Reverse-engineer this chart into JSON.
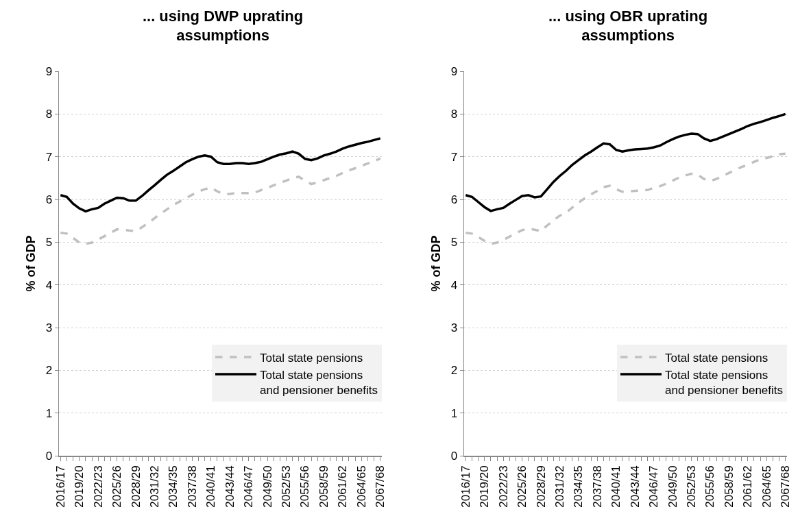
{
  "chart_data": [
    {
      "type": "line",
      "title": "... using DWP uprating assumptions",
      "ylabel": "% of GDP",
      "categories": [
        "2016/17",
        null,
        null,
        "2019/20",
        null,
        null,
        "2022/23",
        null,
        null,
        "2025/26",
        null,
        null,
        "2028/29",
        null,
        null,
        "2031/32",
        null,
        null,
        "2034/35",
        null,
        null,
        "2037/38",
        null,
        null,
        "2040/41",
        null,
        null,
        "2043/44",
        null,
        null,
        "2046/47",
        null,
        null,
        "2049/50",
        null,
        null,
        "2052/53",
        null,
        null,
        "2055/56",
        null,
        null,
        "2058/59",
        null,
        null,
        "2061/62",
        null,
        null,
        "2064/65",
        null,
        null,
        "2067/68"
      ],
      "series": [
        {
          "name": "Total state pensions",
          "color": "#c0c0c0",
          "line_style": "dashed",
          "values": [
            5.22,
            5.2,
            5.1,
            4.99,
            4.96,
            4.99,
            5.06,
            5.14,
            5.22,
            5.3,
            5.29,
            5.27,
            5.26,
            5.35,
            5.45,
            5.56,
            5.67,
            5.77,
            5.87,
            5.95,
            6.03,
            6.11,
            6.18,
            6.24,
            6.28,
            6.19,
            6.12,
            6.13,
            6.15,
            6.15,
            6.15,
            6.16,
            6.22,
            6.27,
            6.33,
            6.39,
            6.44,
            6.5,
            6.53,
            6.44,
            6.36,
            6.4,
            6.45,
            6.5,
            6.55,
            6.62,
            6.68,
            6.73,
            6.79,
            6.84,
            6.89,
            6.96
          ]
        },
        {
          "name": "Total state pensions and pensioner benefits",
          "color": "#000000",
          "line_style": "solid",
          "values": [
            6.1,
            6.06,
            5.9,
            5.79,
            5.72,
            5.77,
            5.8,
            5.9,
            5.97,
            6.04,
            6.03,
            5.97,
            5.97,
            6.08,
            6.21,
            6.33,
            6.46,
            6.58,
            6.67,
            6.77,
            6.87,
            6.94,
            7.0,
            7.03,
            7.0,
            6.87,
            6.83,
            6.83,
            6.85,
            6.85,
            6.83,
            6.85,
            6.88,
            6.94,
            7.0,
            7.05,
            7.08,
            7.12,
            7.07,
            6.95,
            6.92,
            6.96,
            7.03,
            7.07,
            7.12,
            7.19,
            7.24,
            7.28,
            7.32,
            7.35,
            7.39,
            7.43
          ]
        }
      ],
      "ylim": [
        0,
        9
      ],
      "yticks": [
        0,
        1,
        2,
        3,
        4,
        5,
        6,
        7,
        8,
        9
      ],
      "grid": "y",
      "legend": "bottom right"
    },
    {
      "type": "line",
      "title": "... using OBR uprating assumptions",
      "ylabel": "% of GDP",
      "categories": [
        "2016/17",
        null,
        null,
        "2019/20",
        null,
        null,
        "2022/23",
        null,
        null,
        "2025/26",
        null,
        null,
        "2028/29",
        null,
        null,
        "2031/32",
        null,
        null,
        "2034/35",
        null,
        null,
        "2037/38",
        null,
        null,
        "2040/41",
        null,
        null,
        "2043/44",
        null,
        null,
        "2046/47",
        null,
        null,
        "2049/50",
        null,
        null,
        "2052/53",
        null,
        null,
        "2055/56",
        null,
        null,
        "2058/59",
        null,
        null,
        "2061/62",
        null,
        null,
        "2064/65",
        null,
        null,
        "2067/68"
      ],
      "series": [
        {
          "name": "Total state pensions",
          "color": "#c0c0c0",
          "line_style": "dashed",
          "values": [
            5.22,
            5.2,
            5.12,
            5.03,
            4.96,
            4.99,
            5.05,
            5.13,
            5.21,
            5.28,
            5.32,
            5.29,
            5.26,
            5.39,
            5.51,
            5.62,
            5.69,
            5.81,
            5.92,
            6.03,
            6.12,
            6.2,
            6.29,
            6.32,
            6.24,
            6.18,
            6.19,
            6.2,
            6.21,
            6.22,
            6.27,
            6.31,
            6.37,
            6.44,
            6.51,
            6.56,
            6.6,
            6.58,
            6.48,
            6.43,
            6.48,
            6.55,
            6.62,
            6.69,
            6.76,
            6.81,
            6.88,
            6.94,
            6.97,
            7.01,
            7.06,
            7.07
          ]
        },
        {
          "name": "Total state pensions and pensioner benefits",
          "color": "#000000",
          "line_style": "solid",
          "values": [
            6.1,
            6.06,
            5.94,
            5.82,
            5.73,
            5.77,
            5.8,
            5.9,
            5.99,
            6.08,
            6.1,
            6.05,
            6.07,
            6.24,
            6.41,
            6.55,
            6.67,
            6.81,
            6.92,
            7.03,
            7.12,
            7.22,
            7.31,
            7.29,
            7.16,
            7.12,
            7.15,
            7.17,
            7.18,
            7.19,
            7.22,
            7.26,
            7.34,
            7.41,
            7.47,
            7.51,
            7.54,
            7.53,
            7.43,
            7.37,
            7.41,
            7.47,
            7.53,
            7.59,
            7.65,
            7.72,
            7.77,
            7.81,
            7.86,
            7.91,
            7.95,
            8.0
          ]
        }
      ],
      "ylim": [
        0,
        9
      ],
      "yticks": [
        0,
        1,
        2,
        3,
        4,
        5,
        6,
        7,
        8,
        9
      ],
      "grid": "y",
      "legend": "bottom right"
    }
  ]
}
